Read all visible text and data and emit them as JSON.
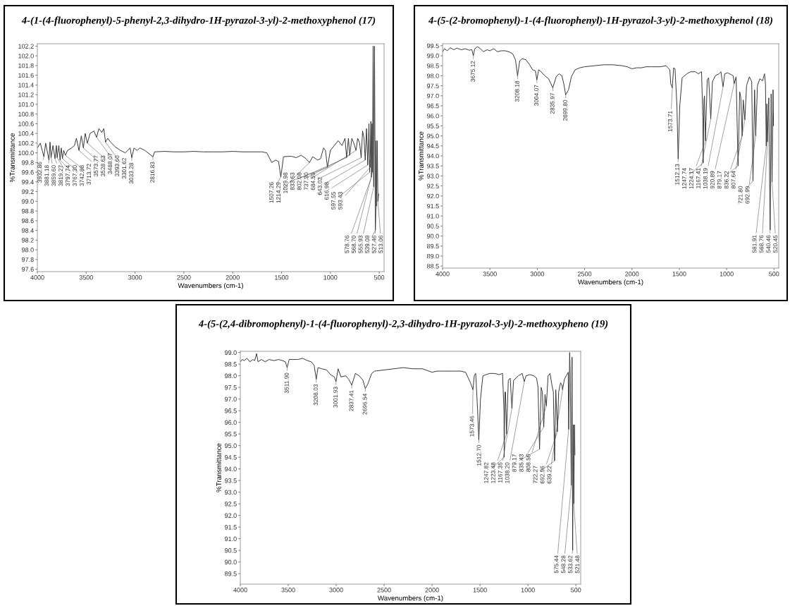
{
  "chart_data": [
    {
      "type": "line",
      "title": "4-(1-(4-fluorophenyl)-5-phenyl-2,3-dihydro-1H-pyrazol-3-yl)-2-methoxyphenol (17)",
      "xlabel": "Wavenumbers (cm-1)",
      "ylabel": "%Transmittance",
      "color": "#333333",
      "xlim": [
        4000,
        450
      ],
      "ylim": [
        97.55,
        102.25
      ],
      "xticks": [
        4000,
        3500,
        3000,
        2500,
        2000,
        1500,
        1000,
        500
      ],
      "yticks": [
        97.6,
        97.8,
        {
          "value": 98,
          "label": "98.0"
        },
        98.2,
        98.4,
        98.6,
        98.8,
        {
          "value": 99,
          "label": "99.0"
        },
        99.2,
        99.4,
        99.6,
        99.8,
        {
          "value": 100,
          "label": "100.0"
        },
        100.2,
        100.4,
        100.6,
        100.8,
        {
          "value": 101,
          "label": "101.0"
        },
        101.2,
        101.4,
        101.6,
        101.8,
        {
          "value": 102,
          "label": "102.0"
        },
        102.2
      ],
      "x": [
        4000,
        3970,
        3950,
        3932.86,
        3915,
        3881.18,
        3870,
        3859.6,
        3840,
        3819.27,
        3805,
        3797.74,
        3780,
        3767.3,
        3755,
        3742.88,
        3730,
        3713.72,
        3690,
        3650,
        3620,
        3600,
        3573.77,
        3550,
        3528.63,
        3510,
        3488.07,
        3460,
        3420,
        3393.6,
        3370,
        3340,
        3320,
        3301.62,
        3280,
        3250,
        3200,
        3150,
        3100,
        3050,
        3033.28,
        3010,
        2980,
        2950,
        2900,
        2816.83,
        2800,
        2700,
        2600,
        2500,
        2400,
        2300,
        2200,
        2100,
        2000,
        1900,
        1800,
        1700,
        1650,
        1600,
        1560,
        1530,
        1507.26,
        1480,
        1400,
        1350,
        1300,
        1250,
        1214.29,
        1180,
        1130,
        1100,
        1070,
        1050,
        1029.98,
        1000,
        960,
        920,
        880,
        850,
        833.63,
        815,
        802.08,
        780,
        760,
        737.3,
        720,
        700,
        684.59,
        670,
        655,
        643.02,
        630,
        616.98,
        605,
        597.55,
        595.5,
        593.43,
        585,
        578.76,
        572,
        568.7,
        562,
        555.93,
        548,
        539.08,
        533,
        527.46,
        520,
        513.06,
        505
      ],
      "values": [
        100.1,
        100.2,
        100.05,
        99.92,
        100.2,
        99.85,
        100.22,
        99.9,
        100.15,
        99.88,
        100.15,
        99.9,
        100.15,
        99.85,
        100.1,
        99.88,
        100.05,
        99.95,
        100.05,
        100.1,
        100.15,
        100.3,
        100.05,
        100.35,
        100.1,
        100.4,
        100.2,
        100.4,
        100.45,
        100.32,
        100.5,
        100.42,
        100.5,
        100.22,
        100.3,
        100.22,
        100.12,
        100.05,
        100.0,
        100.1,
        99.9,
        100.1,
        100.05,
        100.1,
        100.05,
        99.92,
        100.02,
        100.03,
        100.02,
        100.02,
        100.03,
        100.02,
        100.02,
        100.02,
        100.03,
        100.02,
        100.02,
        100.02,
        100.0,
        99.8,
        99.85,
        99.82,
        99.5,
        99.92,
        99.93,
        99.9,
        99.95,
        99.88,
        99.8,
        99.92,
        99.85,
        99.88,
        100.1,
        100.05,
        99.7,
        100.05,
        100.15,
        100.25,
        100.15,
        100.3,
        99.9,
        100.3,
        99.95,
        100.3,
        100.2,
        100.05,
        100.3,
        100.2,
        99.9,
        100.45,
        100.3,
        99.85,
        100.5,
        99.75,
        100.6,
        99.6,
        99.85,
        99.7,
        100.65,
        99.5,
        100.6,
        99.6,
        102.2,
        99.3,
        102.2,
        98.4,
        100.25,
        98.9,
        100.25,
        99.0,
        99.15
      ],
      "annotations": [
        {
          "text": "3932.86",
          "x": 3932.86,
          "y": 99.92
        },
        {
          "text": "3881.18",
          "x": 3881.18,
          "y": 99.85
        },
        {
          "text": "3859.60",
          "x": 3859.6,
          "y": 99.9
        },
        {
          "text": "3819.27",
          "x": 3819.27,
          "y": 99.88
        },
        {
          "text": "3797.74",
          "x": 3797.74,
          "y": 99.9
        },
        {
          "text": "3767.30",
          "x": 3767.3,
          "y": 99.85
        },
        {
          "text": "3742.88",
          "x": 3742.88,
          "y": 99.88
        },
        {
          "text": "3713.72",
          "x": 3713.72,
          "y": 99.95
        },
        {
          "text": "3573.77",
          "x": 3573.77,
          "y": 100.05
        },
        {
          "text": "3528.63",
          "x": 3528.63,
          "y": 100.1
        },
        {
          "text": "3488.07",
          "x": 3488.07,
          "y": 100.2
        },
        {
          "text": "3393.60",
          "x": 3393.6,
          "y": 100.32
        },
        {
          "text": "3301.62",
          "x": 3301.62,
          "y": 100.22
        },
        {
          "text": "3033.28",
          "x": 3033.28,
          "y": 99.9
        },
        {
          "text": "2816.83",
          "x": 2816.83,
          "y": 99.92
        },
        {
          "text": "1507.26",
          "x": 1507.26,
          "y": 99.5
        },
        {
          "text": "1214.29",
          "x": 1214.29,
          "y": 99.8
        },
        {
          "text": "1029.98",
          "x": 1029.98,
          "y": 99.7
        },
        {
          "text": "833.63",
          "x": 833.63,
          "y": 99.9
        },
        {
          "text": "802.08",
          "x": 802.08,
          "y": 99.95
        },
        {
          "text": "737.30",
          "x": 737.3,
          "y": 100.05
        },
        {
          "text": "684.59",
          "x": 684.59,
          "y": 99.9
        },
        {
          "text": "643.02",
          "x": 643.02,
          "y": 99.85
        },
        {
          "text": "616.98",
          "x": 616.98,
          "y": 99.75
        },
        {
          "text": "597.55",
          "x": 597.55,
          "y": 99.6
        },
        {
          "text": "593.43",
          "x": 593.43,
          "y": 99.7
        },
        {
          "text": "578.76",
          "x": 578.76,
          "y": 99.5
        },
        {
          "text": "568.70",
          "x": 568.7,
          "y": 99.6
        },
        {
          "text": "555.93",
          "x": 555.93,
          "y": 99.3
        },
        {
          "text": "539.08",
          "x": 539.08,
          "y": 98.4
        },
        {
          "text": "527.46",
          "x": 527.46,
          "y": 98.9
        },
        {
          "text": "513.06",
          "x": 513.06,
          "y": 99.0
        }
      ]
    },
    {
      "type": "line",
      "title": "4-(5-(2-bromophenyl)-1-(4-fluorophenyl)-1H-pyrazol-3-yl)-2-methoxyphenol (18)",
      "xlabel": "Wavenumbers (cm-1)",
      "ylabel": "%Transmittance",
      "color": "#333333",
      "xlim": [
        4000,
        450
      ],
      "ylim": [
        88.4,
        99.6
      ],
      "xticks": [
        4000,
        3500,
        3000,
        2500,
        2000,
        1500,
        1000,
        500
      ],
      "yticks": [
        88.5,
        {
          "value": 89,
          "label": "89.0"
        },
        89.5,
        {
          "value": 90,
          "label": "90.0"
        },
        90.5,
        {
          "value": 91,
          "label": "91.0"
        },
        91.5,
        {
          "value": 92,
          "label": "92.0"
        },
        92.5,
        {
          "value": 93,
          "label": "93.0"
        },
        93.5,
        {
          "value": 94,
          "label": "94.0"
        },
        94.5,
        {
          "value": 95,
          "label": "95.0"
        },
        95.5,
        {
          "value": 96,
          "label": "96.0"
        },
        96.5,
        {
          "value": 97,
          "label": "97.0"
        },
        97.5,
        {
          "value": 98,
          "label": "98.0"
        },
        98.5,
        {
          "value": 99,
          "label": "99.0"
        },
        99.5
      ],
      "x": [
        4000,
        3980,
        3950,
        3920,
        3880,
        3850,
        3800,
        3760,
        3720,
        3690,
        3675.12,
        3660,
        3630,
        3600,
        3570,
        3530,
        3500,
        3460,
        3420,
        3380,
        3340,
        3300,
        3260,
        3230,
        3208.18,
        3185,
        3160,
        3120,
        3080,
        3050,
        3020,
        3004.07,
        2985,
        2960,
        2920,
        2880,
        2835.97,
        2800,
        2770,
        2740,
        2720,
        2699.8,
        2670,
        2640,
        2600,
        2550,
        2500,
        2400,
        2300,
        2200,
        2100,
        2050,
        2000,
        1950,
        1900,
        1850,
        1800,
        1700,
        1640,
        1600,
        1590,
        1573.71,
        1560,
        1545,
        1525,
        1512.13,
        1495,
        1470,
        1420,
        1380,
        1330,
        1300,
        1265,
        1250,
        1247.74,
        1240,
        1234,
        1224.17,
        1205,
        1190,
        1167.41,
        1150,
        1120,
        1080,
        1060,
        1038.19,
        1020,
        990,
        950,
        930,
        920.89,
        900,
        879.17,
        862,
        850,
        836.22,
        825,
        807.64,
        790,
        760,
        735,
        721.8,
        705,
        692.99,
        675,
        650,
        620,
        600,
        590,
        581.91,
        575,
        568.76,
        555,
        540.46,
        530,
        520.45,
        510,
        505
      ],
      "values": [
        99.2,
        99.35,
        99.25,
        99.4,
        99.3,
        99.38,
        99.3,
        99.35,
        99.28,
        99.3,
        99.0,
        99.35,
        99.45,
        99.35,
        99.2,
        99.3,
        99.25,
        99.35,
        99.2,
        99.25,
        99.25,
        99.2,
        99.1,
        98.8,
        98.0,
        98.75,
        98.85,
        98.8,
        98.55,
        98.3,
        98.25,
        97.8,
        98.3,
        98.2,
        98.0,
        97.85,
        97.4,
        97.95,
        98.1,
        98.0,
        97.6,
        97.05,
        97.3,
        97.95,
        98.3,
        98.4,
        98.45,
        98.5,
        98.55,
        98.55,
        98.5,
        98.45,
        98.35,
        98.4,
        98.4,
        98.45,
        98.45,
        98.45,
        98.5,
        98.3,
        97.6,
        97.4,
        98.4,
        98.35,
        96.5,
        93.85,
        96.5,
        97.9,
        98.1,
        98.2,
        98.2,
        98.1,
        98.2,
        95.6,
        93.65,
        96.8,
        97.0,
        94.75,
        97.8,
        97.9,
        95.85,
        97.7,
        98.0,
        98.1,
        98.2,
        97.45,
        98.1,
        98.15,
        98.05,
        98.0,
        97.6,
        97.95,
        93.5,
        97.2,
        96.9,
        95.0,
        96.8,
        95.8,
        97.5,
        97.95,
        97.7,
        92.75,
        97.3,
        95.0,
        97.5,
        97.85,
        97.75,
        98.1,
        97.6,
        94.5,
        96.6,
        94.7,
        96.9,
        90.3,
        97.1,
        92.7,
        97.3,
        95.5
      ],
      "annotations": [
        {
          "text": "3675.12",
          "x": 3675.12,
          "y": 99.0
        },
        {
          "text": "3208.18",
          "x": 3208.18,
          "y": 98.0
        },
        {
          "text": "3004.07",
          "x": 3004.07,
          "y": 97.8
        },
        {
          "text": "2835.97",
          "x": 2835.97,
          "y": 97.4
        },
        {
          "text": "2699.80",
          "x": 2699.8,
          "y": 97.05
        },
        {
          "text": "1573.71",
          "x": 1573.71,
          "y": 97.4
        },
        {
          "text": "1512.13",
          "x": 1512.13,
          "y": 93.85
        },
        {
          "text": "1247.74",
          "x": 1247.74,
          "y": 93.65
        },
        {
          "text": "1224.17",
          "x": 1224.17,
          "y": 94.75
        },
        {
          "text": "1167.41",
          "x": 1167.41,
          "y": 95.85
        },
        {
          "text": "1038.19",
          "x": 1038.19,
          "y": 97.45
        },
        {
          "text": "920.89",
          "x": 920.89,
          "y": 97.6
        },
        {
          "text": "879.17",
          "x": 879.17,
          "y": 93.5
        },
        {
          "text": "836.22",
          "x": 836.22,
          "y": 95.0
        },
        {
          "text": "807.64",
          "x": 807.64,
          "y": 95.8
        },
        {
          "text": "721.80",
          "x": 721.8,
          "y": 92.75
        },
        {
          "text": "692.99",
          "x": 692.99,
          "y": 95.0
        },
        {
          "text": "581.91",
          "x": 581.91,
          "y": 94.5
        },
        {
          "text": "568.76",
          "x": 568.76,
          "y": 94.7
        },
        {
          "text": "540.46",
          "x": 540.46,
          "y": 90.3
        },
        {
          "text": "520.45",
          "x": 520.45,
          "y": 92.7
        }
      ]
    },
    {
      "type": "line",
      "title": "4-(5-(2,4-dibromophenyl)-1-(4-fluorophenyl)-2,3-dihydro-1H-pyrazol-3-yl)-2-methoxypheno (19)",
      "xlabel": "Wavenumbers (cm-1)",
      "ylabel": "%Transmittance",
      "color": "#333333",
      "xlim": [
        4000,
        450
      ],
      "ylim": [
        89.05,
        99.05
      ],
      "xticks": [
        4000,
        3500,
        3000,
        2500,
        2000,
        1500,
        1000,
        500
      ],
      "yticks": [
        89.5,
        {
          "value": 90,
          "label": "90.0"
        },
        90.5,
        {
          "value": 91,
          "label": "91.0"
        },
        91.5,
        {
          "value": 92,
          "label": "92.0"
        },
        92.5,
        {
          "value": 93,
          "label": "93.0"
        },
        93.5,
        {
          "value": 94,
          "label": "94.0"
        },
        94.5,
        {
          "value": 95,
          "label": "95.0"
        },
        95.5,
        {
          "value": 96,
          "label": "96.0"
        },
        96.5,
        {
          "value": 97,
          "label": "97.0"
        },
        97.5,
        {
          "value": 98,
          "label": "98.0"
        },
        98.5,
        {
          "value": 99,
          "label": "99.0"
        }
      ],
      "x": [
        4000,
        3980,
        3960,
        3930,
        3900,
        3870,
        3850,
        3830,
        3815,
        3780,
        3740,
        3700,
        3650,
        3600,
        3560,
        3530,
        3511.9,
        3490,
        3450,
        3400,
        3350,
        3300,
        3260,
        3230,
        3208.03,
        3190,
        3150,
        3100,
        3060,
        3020,
        3001.93,
        2980,
        2950,
        2900,
        2870,
        2837.41,
        2800,
        2760,
        2720,
        2696.54,
        2670,
        2630,
        2600,
        2500,
        2400,
        2300,
        2200,
        2100,
        2000,
        1950,
        1900,
        1800,
        1700,
        1650,
        1600,
        1573.46,
        1560,
        1545,
        1525,
        1512.7,
        1495,
        1470,
        1400,
        1350,
        1300,
        1265,
        1250,
        1247.82,
        1240,
        1234,
        1223.48,
        1205,
        1185,
        1167.35,
        1150,
        1100,
        1060,
        1038.2,
        1020,
        980,
        940,
        910,
        895,
        879.17,
        862,
        850,
        835.43,
        822,
        808.56,
        790,
        770,
        750,
        735,
        722.27,
        710,
        692.96,
        680,
        660,
        645,
        639.22,
        620,
        600,
        580,
        575.44,
        565,
        559,
        548.28,
        540,
        533.62,
        527,
        521.48,
        515,
        510
      ],
      "values": [
        98.6,
        98.7,
        98.65,
        98.75,
        98.6,
        98.7,
        98.65,
        98.95,
        98.6,
        98.7,
        98.6,
        98.7,
        98.65,
        98.7,
        98.65,
        98.6,
        98.35,
        98.7,
        98.7,
        98.7,
        98.75,
        98.65,
        98.6,
        98.45,
        97.85,
        98.35,
        98.3,
        98.25,
        98.05,
        97.95,
        97.75,
        98.3,
        97.95,
        98.0,
        97.85,
        97.6,
        98.1,
        98.0,
        97.8,
        97.45,
        97.65,
        98.1,
        98.2,
        98.25,
        98.3,
        98.35,
        98.3,
        98.3,
        98.15,
        98.2,
        98.2,
        98.2,
        98.2,
        98.15,
        97.7,
        97.4,
        98.0,
        98.1,
        96.5,
        95.25,
        97.0,
        98.0,
        98.1,
        98.1,
        98.05,
        98.1,
        96.5,
        94.5,
        97.3,
        97.3,
        95.5,
        97.8,
        97.9,
        96.6,
        97.8,
        98.0,
        98.1,
        97.75,
        98.0,
        98.05,
        98.0,
        97.9,
        97.5,
        94.85,
        97.5,
        97.3,
        95.8,
        97.2,
        96.7,
        98.0,
        98.1,
        97.6,
        97.3,
        94.35,
        97.4,
        95.6,
        97.3,
        97.7,
        97.6,
        97.4,
        97.85,
        98.0,
        98.15,
        95.7,
        99.0,
        98.1,
        93.3,
        98.8,
        90.5,
        95.9,
        92.5,
        95.9,
        94.6
      ],
      "annotations": [
        {
          "text": "3511.90",
          "x": 3511.9,
          "y": 98.35
        },
        {
          "text": "3208.03",
          "x": 3208.03,
          "y": 97.85
        },
        {
          "text": "3001.93",
          "x": 3001.93,
          "y": 97.75
        },
        {
          "text": "2837.41",
          "x": 2837.41,
          "y": 97.6
        },
        {
          "text": "2696.54",
          "x": 2696.54,
          "y": 97.45
        },
        {
          "text": "1573.46",
          "x": 1573.46,
          "y": 97.4
        },
        {
          "text": "1512.70",
          "x": 1512.7,
          "y": 95.25
        },
        {
          "text": "1247.82",
          "x": 1247.82,
          "y": 94.5
        },
        {
          "text": "1223.48",
          "x": 1223.48,
          "y": 95.5
        },
        {
          "text": "1167.35",
          "x": 1167.35,
          "y": 96.6
        },
        {
          "text": "1038.20",
          "x": 1038.2,
          "y": 97.75
        },
        {
          "text": "879.17",
          "x": 879.17,
          "y": 94.85
        },
        {
          "text": "835.43",
          "x": 835.43,
          "y": 95.8
        },
        {
          "text": "808.56",
          "x": 808.56,
          "y": 96.7
        },
        {
          "text": "722.27",
          "x": 722.27,
          "y": 94.35
        },
        {
          "text": "692.96",
          "x": 692.96,
          "y": 95.6
        },
        {
          "text": "639.22",
          "x": 639.22,
          "y": 97.4
        },
        {
          "text": "575.44",
          "x": 575.44,
          "y": 95.7
        },
        {
          "text": "548.28",
          "x": 548.28,
          "y": 93.3
        },
        {
          "text": "533.62",
          "x": 533.62,
          "y": 90.5
        },
        {
          "text": "521.48",
          "x": 521.48,
          "y": 92.5
        }
      ]
    }
  ]
}
